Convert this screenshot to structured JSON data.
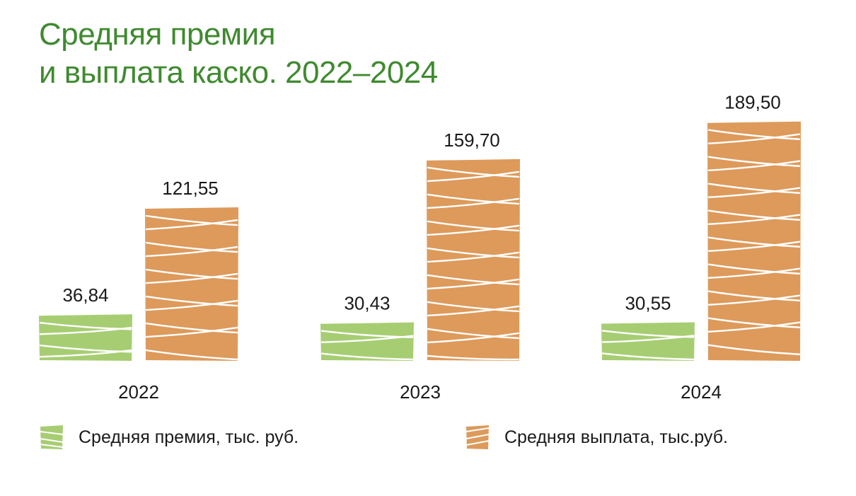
{
  "title_line1": "Средняя премия",
  "title_line2": "и выплата каско. 2022–2024",
  "colors": {
    "title": "#3f8a2f",
    "premium": "#a7cd72",
    "payout": "#dd9a5b",
    "text": "#1a1a1a"
  },
  "chart_data": {
    "type": "bar",
    "categories": [
      "2022",
      "2023",
      "2024"
    ],
    "series": [
      {
        "name": "Средняя премия, тыс. руб.",
        "values": [
          36.84,
          30.43,
          30.55
        ],
        "labels": [
          "36,84",
          "30,43",
          "30,55"
        ]
      },
      {
        "name": "Средняя выплата, тыс.руб.",
        "values": [
          121.55,
          159.7,
          189.5
        ],
        "labels": [
          "121,55",
          "159,70",
          "189,50"
        ]
      }
    ]
  },
  "legend": {
    "premium_label": "Средняя премия, тыс. руб.",
    "payout_label": "Средняя выплата, тыс.руб."
  }
}
